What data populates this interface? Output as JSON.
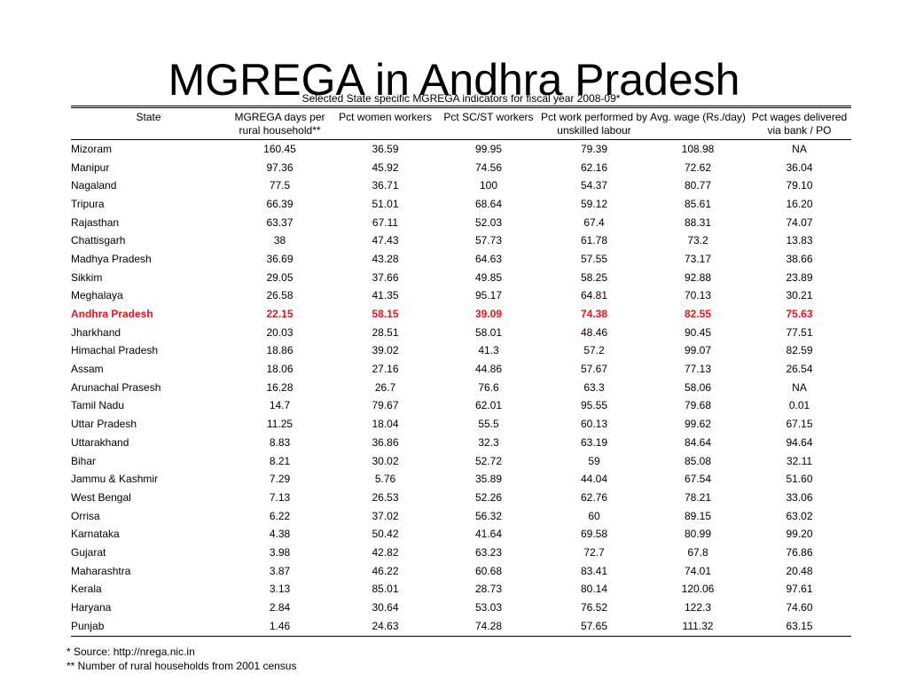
{
  "title": "MGREGA in Andhra Pradesh",
  "table": {
    "caption": "Selected State specific MGREGA indicators for fiscal year 2008-09*",
    "columns": [
      "State",
      "MGREGA days per rural household**",
      "Pct women workers",
      "Pct SC/ST workers",
      "Pct work performed by unskilled labour",
      "Avg. wage (Rs./day)",
      "Pct wages delivered via bank / PO"
    ],
    "highlight_row": 9,
    "highlight_color": "#e8101a",
    "rows": [
      [
        "Mizoram",
        "160.45",
        "36.59",
        "99.95",
        "79.39",
        "108.98",
        "NA"
      ],
      [
        "Manipur",
        "97.36",
        "45.92",
        "74.56",
        "62.16",
        "72.62",
        "36.04"
      ],
      [
        "Nagaland",
        "77.5",
        "36.71",
        "100",
        "54.37",
        "80.77",
        "79.10"
      ],
      [
        "Tripura",
        "66.39",
        "51.01",
        "68.64",
        "59.12",
        "85.61",
        "16.20"
      ],
      [
        "Rajasthan",
        "63.37",
        "67.11",
        "52.03",
        "67.4",
        "88.31",
        "74.07"
      ],
      [
        "Chattisgarh",
        "38",
        "47.43",
        "57.73",
        "61.78",
        "73.2",
        "13.83"
      ],
      [
        "Madhya Pradesh",
        "36.69",
        "43.28",
        "64.63",
        "57.55",
        "73.17",
        "38.66"
      ],
      [
        "Sikkim",
        "29.05",
        "37.66",
        "49.85",
        "58.25",
        "92.88",
        "23.89"
      ],
      [
        "Meghalaya",
        "26.58",
        "41.35",
        "95.17",
        "64.81",
        "70.13",
        "30.21"
      ],
      [
        "Andhra Pradesh",
        "22.15",
        "58.15",
        "39.09",
        "74.38",
        "82.55",
        "75.63"
      ],
      [
        "Jharkhand",
        "20.03",
        "28.51",
        "58.01",
        "48.46",
        "90.45",
        "77.51"
      ],
      [
        "Himachal Pradesh",
        "18.86",
        "39.02",
        "41.3",
        "57.2",
        "99.07",
        "82.59"
      ],
      [
        "Assam",
        "18.06",
        "27.16",
        "44.86",
        "57.67",
        "77.13",
        "26.54"
      ],
      [
        "Arunachal Prasesh",
        "16.28",
        "26.7",
        "76.6",
        "63.3",
        "58.06",
        "NA"
      ],
      [
        "Tamil Nadu",
        "14.7",
        "79.67",
        "62.01",
        "95.55",
        "79.68",
        "0.01"
      ],
      [
        "Uttar Pradesh",
        "11.25",
        "18.04",
        "55.5",
        "60.13",
        "99.62",
        "67.15"
      ],
      [
        "Uttarakhand",
        "8.83",
        "36.86",
        "32.3",
        "63.19",
        "84.64",
        "94.64"
      ],
      [
        "Bihar",
        "8.21",
        "30.02",
        "52.72",
        "59",
        "85.08",
        "32.11"
      ],
      [
        "Jammu & Kashmir",
        "7.29",
        "5.76",
        "35.89",
        "44.04",
        "67.54",
        "51.60"
      ],
      [
        "West Bengal",
        "7.13",
        "26.53",
        "52.26",
        "62.76",
        "78.21",
        "33.06"
      ],
      [
        "Orrisa",
        "6.22",
        "37.02",
        "56.32",
        "60",
        "89.15",
        "63.02"
      ],
      [
        "Karnataka",
        "4.38",
        "50.42",
        "41.64",
        "69.58",
        "80.99",
        "99.20"
      ],
      [
        "Gujarat",
        "3.98",
        "42.82",
        "63.23",
        "72.7",
        "67.8",
        "76.86"
      ],
      [
        "Maharashtra",
        "3.87",
        "46.22",
        "60.68",
        "83.41",
        "74.01",
        "20.48"
      ],
      [
        "Kerala",
        "3.13",
        "85.01",
        "28.73",
        "80.14",
        "120.06",
        "97.61"
      ],
      [
        "Haryana",
        "2.84",
        "30.64",
        "53.03",
        "76.52",
        "122.3",
        "74.60"
      ],
      [
        "Punjab",
        "1.46",
        "24.63",
        "74.28",
        "57.65",
        "111.32",
        "63.15"
      ]
    ]
  },
  "footnotes": {
    "source": "* Source: http://nrega.nic.in",
    "census": "** Number of rural households from 2001 census"
  }
}
